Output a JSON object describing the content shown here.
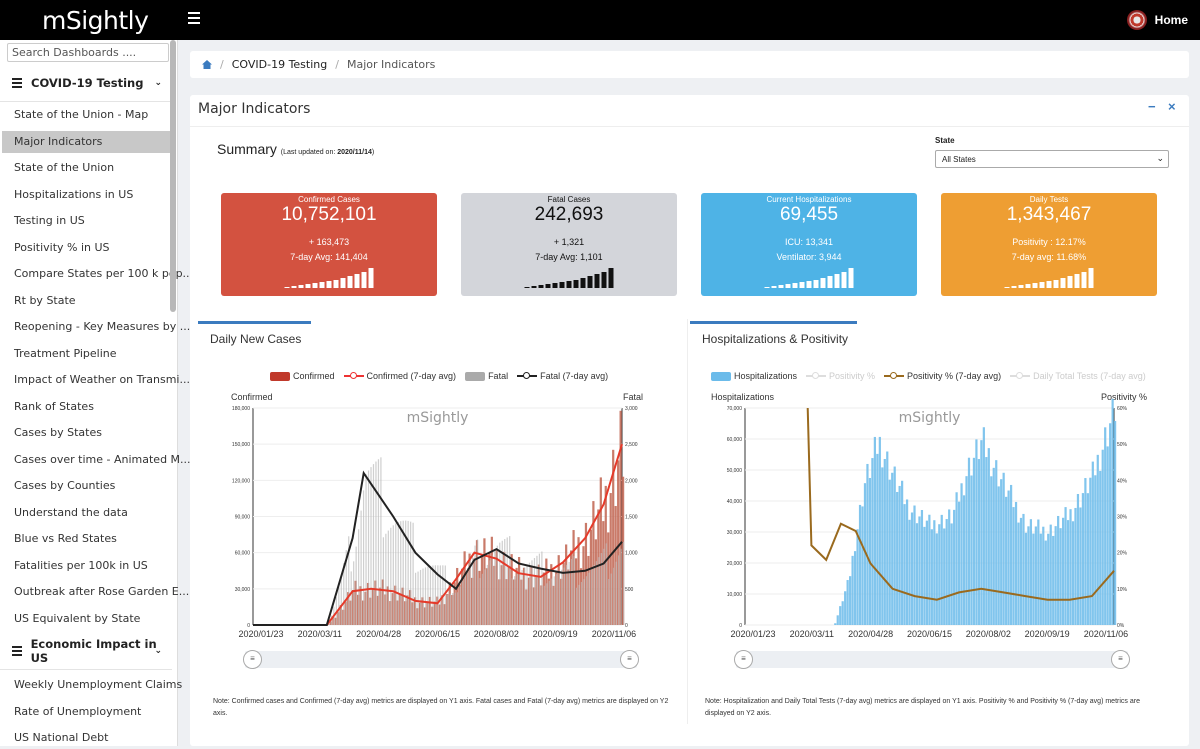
{
  "topbar": {
    "logo": "mSightly",
    "home_label": "Home"
  },
  "sidebar": {
    "search_placeholder": "Search Dashboards ....",
    "section1": "COVID-19 Testing",
    "items1": [
      "State of the Union - Map",
      "Major Indicators",
      "State of the Union",
      "Hospitalizations in US",
      "Testing in US",
      "Positivity % in US",
      "Compare States per 100 k pop...",
      "Rt by State",
      "Reopening - Key Measures by ...",
      "Treatment Pipeline",
      "Impact of Weather on Transmi...",
      "Rank of States",
      "Cases by States",
      "Cases over time - Animated M...",
      "Cases by Counties",
      "Understand the data",
      "Blue vs Red States",
      "Fatalities per 100k in US",
      "Outbreak after Rose Garden E...",
      "US Equivalent by State"
    ],
    "section2": "Economic Impact in US",
    "items2": [
      "Weekly Unemployment Claims",
      "Rate of Unemployment",
      "US National Debt"
    ]
  },
  "breadcrumb": {
    "level1": "COVID-19 Testing",
    "level2": "Major Indicators"
  },
  "panel": {
    "title": "Major Indicators",
    "minimize": "−",
    "close": "×"
  },
  "summary": {
    "title": "Summary",
    "updated_prefix": "(Last updated on: ",
    "updated_date": "2020/11/14",
    "updated_suffix": ")"
  },
  "state_filter": {
    "label": "State",
    "value": "All States"
  },
  "cards": {
    "confirmed": {
      "title": "Confirmed Cases",
      "value": "10,752,101",
      "line1": "+ 163,473",
      "line2": "7-day Avg: 141,404",
      "color": "#d35240"
    },
    "fatal": {
      "title": "Fatal Cases",
      "value": "242,693",
      "line1": "+ 1,321",
      "line2": "7-day Avg: 1,101",
      "color": "#d3d5da"
    },
    "hosp": {
      "title": "Current Hospitalizations",
      "value": "69,455",
      "line1": "ICU: 13,341",
      "line2": "Ventilator: 3,944",
      "color": "#4eb3e6"
    },
    "tests": {
      "title": "Daily Tests",
      "value": "1,343,467",
      "line1": "Positivity : 12.17%",
      "line2": "7-day avg: 11.68%",
      "color": "#ee9e33"
    }
  },
  "chart_data": [
    {
      "type": "bar",
      "title": "Daily New Cases",
      "legend": [
        "Confirmed",
        "Confirmed (7-day avg)",
        "Fatal",
        "Fatal (7-day avg)"
      ],
      "ylabel": "Confirmed",
      "y2label": "Fatal",
      "ylim": [
        0,
        180000
      ],
      "y2lim": [
        0,
        3000
      ],
      "yticks": [
        "180,000",
        "150,000",
        "120,000",
        "90,000",
        "60,000",
        "30,000",
        "0"
      ],
      "y2ticks": [
        "3,000",
        "2,500",
        "2,000",
        "1,500",
        "1,000",
        "500",
        "0"
      ],
      "xticks": [
        "2020/01/23",
        "2020/03/11",
        "2020/04/28",
        "2020/06/15",
        "2020/08/02",
        "2020/09/19",
        "2020/11/06"
      ],
      "watermark": "mSightly",
      "series": [
        {
          "name": "Confirmed (7-day avg)",
          "x": [
            0.0,
            0.2,
            0.27,
            0.32,
            0.38,
            0.44,
            0.5,
            0.55,
            0.6,
            0.66,
            0.72,
            0.78,
            0.84,
            0.9,
            0.95,
            1.0
          ],
          "values": [
            0,
            0,
            28000,
            30000,
            28000,
            20000,
            18000,
            38000,
            60000,
            55000,
            43000,
            40000,
            52000,
            72000,
            100000,
            150000
          ]
        },
        {
          "name": "Fatal (7-day avg)",
          "x": [
            0.0,
            0.2,
            0.27,
            0.3,
            0.34,
            0.38,
            0.44,
            0.5,
            0.55,
            0.6,
            0.66,
            0.72,
            0.78,
            0.84,
            0.9,
            0.95,
            1.0
          ],
          "values": [
            0,
            0,
            1200,
            2100,
            1800,
            1500,
            1000,
            700,
            500,
            900,
            1050,
            850,
            780,
            720,
            750,
            850,
            1150
          ]
        }
      ],
      "note": "Note: Confirmed cases and Confirmed (7-day avg) metrics are displayed on Y1 axis. Fatal cases and Fatal (7-day avg) metrics are displayed on Y2 axis."
    },
    {
      "type": "bar",
      "title": "Hospitalizations & Positivity",
      "legend": [
        "Hospitalizations",
        "Positivity %",
        "Positivity % (7-day avg)",
        "Daily Total Tests (7-day avg)"
      ],
      "ylabel": "Hospitalizations",
      "y2label": "Positivity %",
      "ylim": [
        0,
        70000
      ],
      "y2lim": [
        0,
        60
      ],
      "yticks": [
        "70,000",
        "60,000",
        "50,000",
        "40,000",
        "30,000",
        "20,000",
        "10,000",
        "0"
      ],
      "y2ticks": [
        "60%",
        "50%",
        "40%",
        "30%",
        "20%",
        "10%",
        "0%"
      ],
      "xticks": [
        "2020/01/23",
        "2020/03/11",
        "2020/04/28",
        "2020/06/15",
        "2020/08/02",
        "2020/09/19",
        "2020/11/06"
      ],
      "watermark": "mSightly",
      "series": [
        {
          "name": "Hospitalizations",
          "x": [
            0.24,
            0.28,
            0.32,
            0.36,
            0.4,
            0.44,
            0.5,
            0.56,
            0.6,
            0.64,
            0.7,
            0.76,
            0.82,
            0.88,
            0.94,
            1.0
          ],
          "values": [
            0,
            15000,
            45000,
            59000,
            48000,
            38000,
            32000,
            35000,
            50000,
            59000,
            45000,
            32000,
            30000,
            36000,
            48000,
            70000
          ]
        },
        {
          "name": "Positivity % (7-day avg)",
          "x": [
            0.17,
            0.18,
            0.22,
            0.26,
            0.3,
            0.34,
            0.4,
            0.46,
            0.52,
            0.58,
            0.64,
            0.7,
            0.76,
            0.82,
            0.88,
            0.94,
            1.0
          ],
          "values": [
            60,
            22,
            18,
            28,
            26,
            17,
            10,
            8,
            7,
            9,
            10,
            9,
            8,
            7,
            7,
            8,
            15
          ]
        }
      ],
      "note": "Note: Hospitalization and Daily Total Tests (7-day avg) metrics are displayed on Y1 axis. Positivity % and Positivity % (7-day avg) metrics are displayed on Y2 axis."
    }
  ]
}
